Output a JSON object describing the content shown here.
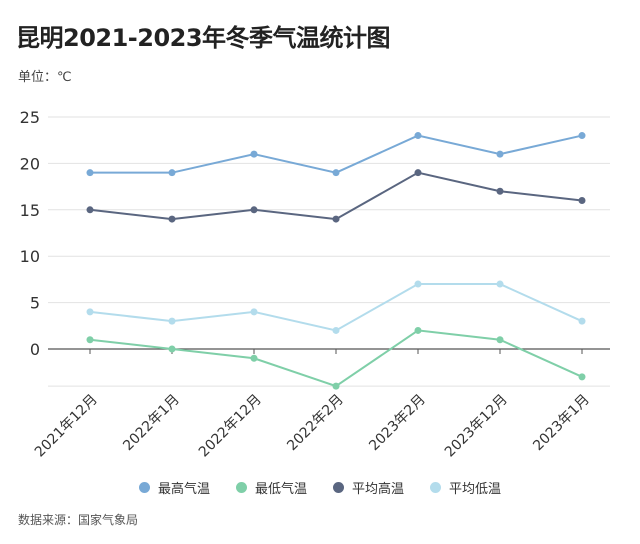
{
  "chart_data": {
    "type": "line",
    "title": "昆明2021-2023年冬季气温统计图",
    "ylabel": "单位：℃",
    "source": "数据来源：国家气象局",
    "categories": [
      "2021年12月",
      "2022年1月",
      "2022年12月",
      "2022年2月",
      "2023年2月",
      "2023年12月",
      "2023年1月"
    ],
    "ylim": [
      -4,
      25
    ],
    "yticks": [
      0,
      5,
      10,
      15,
      20,
      25
    ],
    "grid": true,
    "legend_position": "bottom",
    "series": [
      {
        "name": "最高气温",
        "color": "#78a9d6",
        "values": [
          19,
          19,
          21,
          19,
          23,
          21,
          23
        ]
      },
      {
        "name": "最低气温",
        "color": "#7fcfa8",
        "values": [
          1,
          0,
          -1,
          -4,
          2,
          1,
          -3
        ]
      },
      {
        "name": "平均高温",
        "color": "#5a6680",
        "values": [
          15,
          14,
          15,
          14,
          19,
          17,
          16
        ]
      },
      {
        "name": "平均低温",
        "color": "#b3dcec",
        "values": [
          4,
          3,
          4,
          2,
          7,
          7,
          3
        ]
      }
    ]
  }
}
